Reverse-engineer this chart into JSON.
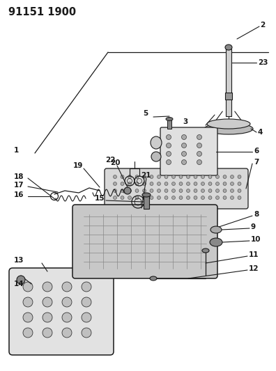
{
  "title": "91151 1900",
  "bg_color": "#ffffff",
  "line_color": "#1a1a1a",
  "title_fontsize": 10,
  "label_fontsize": 7.5,
  "fig_width": 3.96,
  "fig_height": 5.33,
  "dpi": 100
}
